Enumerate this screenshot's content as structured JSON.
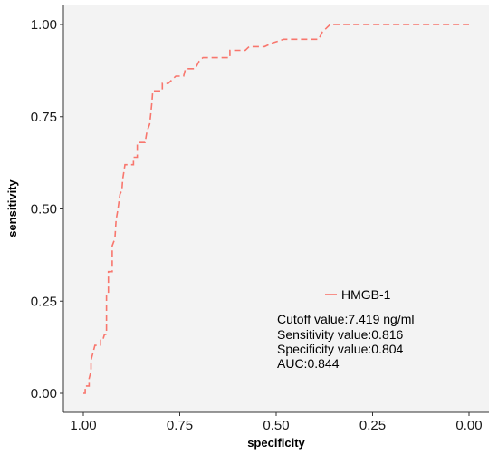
{
  "chart_data": {
    "type": "line",
    "title": "",
    "xlabel": "specificity",
    "ylabel": "sensitivity",
    "x_reversed": true,
    "xlim": [
      1.0,
      0.0
    ],
    "ylim": [
      0.0,
      1.0
    ],
    "x_ticks": [
      1.0,
      0.75,
      0.5,
      0.25,
      0.0
    ],
    "x_tick_labels": [
      "1.00",
      "0.75",
      "0.50",
      "0.25",
      "0.00"
    ],
    "y_ticks": [
      0.0,
      0.25,
      0.5,
      0.75,
      1.0
    ],
    "y_tick_labels": [
      "0.00",
      "0.25",
      "0.50",
      "0.75",
      "1.00"
    ],
    "grid": false,
    "background_color": "#f3f3f3",
    "legend": {
      "placement": "inside-bottom-right",
      "entries": [
        "HMGB-1"
      ]
    },
    "series": [
      {
        "name": "HMGB-1",
        "color": "#f8766d",
        "line_style": "dashed",
        "points": [
          [
            1.0,
            0.0
          ],
          [
            0.995,
            0.0
          ],
          [
            0.995,
            0.02
          ],
          [
            0.985,
            0.02
          ],
          [
            0.985,
            0.04
          ],
          [
            0.98,
            0.06
          ],
          [
            0.98,
            0.09
          ],
          [
            0.975,
            0.11
          ],
          [
            0.97,
            0.13
          ],
          [
            0.955,
            0.13
          ],
          [
            0.955,
            0.15
          ],
          [
            0.948,
            0.15
          ],
          [
            0.945,
            0.16
          ],
          [
            0.94,
            0.16
          ],
          [
            0.94,
            0.27
          ],
          [
            0.935,
            0.27
          ],
          [
            0.935,
            0.33
          ],
          [
            0.925,
            0.33
          ],
          [
            0.925,
            0.4
          ],
          [
            0.918,
            0.42
          ],
          [
            0.915,
            0.47
          ],
          [
            0.91,
            0.5
          ],
          [
            0.905,
            0.54
          ],
          [
            0.9,
            0.55
          ],
          [
            0.898,
            0.58
          ],
          [
            0.892,
            0.62
          ],
          [
            0.87,
            0.62
          ],
          [
            0.87,
            0.64
          ],
          [
            0.86,
            0.64
          ],
          [
            0.86,
            0.68
          ],
          [
            0.84,
            0.68
          ],
          [
            0.835,
            0.71
          ],
          [
            0.828,
            0.73
          ],
          [
            0.825,
            0.76
          ],
          [
            0.822,
            0.79
          ],
          [
            0.82,
            0.82
          ],
          [
            0.795,
            0.82
          ],
          [
            0.795,
            0.84
          ],
          [
            0.78,
            0.84
          ],
          [
            0.77,
            0.85
          ],
          [
            0.76,
            0.86
          ],
          [
            0.74,
            0.86
          ],
          [
            0.735,
            0.88
          ],
          [
            0.71,
            0.88
          ],
          [
            0.705,
            0.89
          ],
          [
            0.7,
            0.9
          ],
          [
            0.69,
            0.91
          ],
          [
            0.62,
            0.91
          ],
          [
            0.62,
            0.93
          ],
          [
            0.58,
            0.93
          ],
          [
            0.57,
            0.94
          ],
          [
            0.53,
            0.94
          ],
          [
            0.51,
            0.95
          ],
          [
            0.48,
            0.96
          ],
          [
            0.39,
            0.96
          ],
          [
            0.38,
            0.98
          ],
          [
            0.37,
            0.99
          ],
          [
            0.36,
            1.0
          ],
          [
            0.0,
            1.0
          ]
        ]
      }
    ],
    "annotations": [
      "Cutoff value:7.419 ng/ml",
      "Sensitivity value:0.816",
      "Specificity value:0.804",
      "AUC:0.844"
    ]
  }
}
